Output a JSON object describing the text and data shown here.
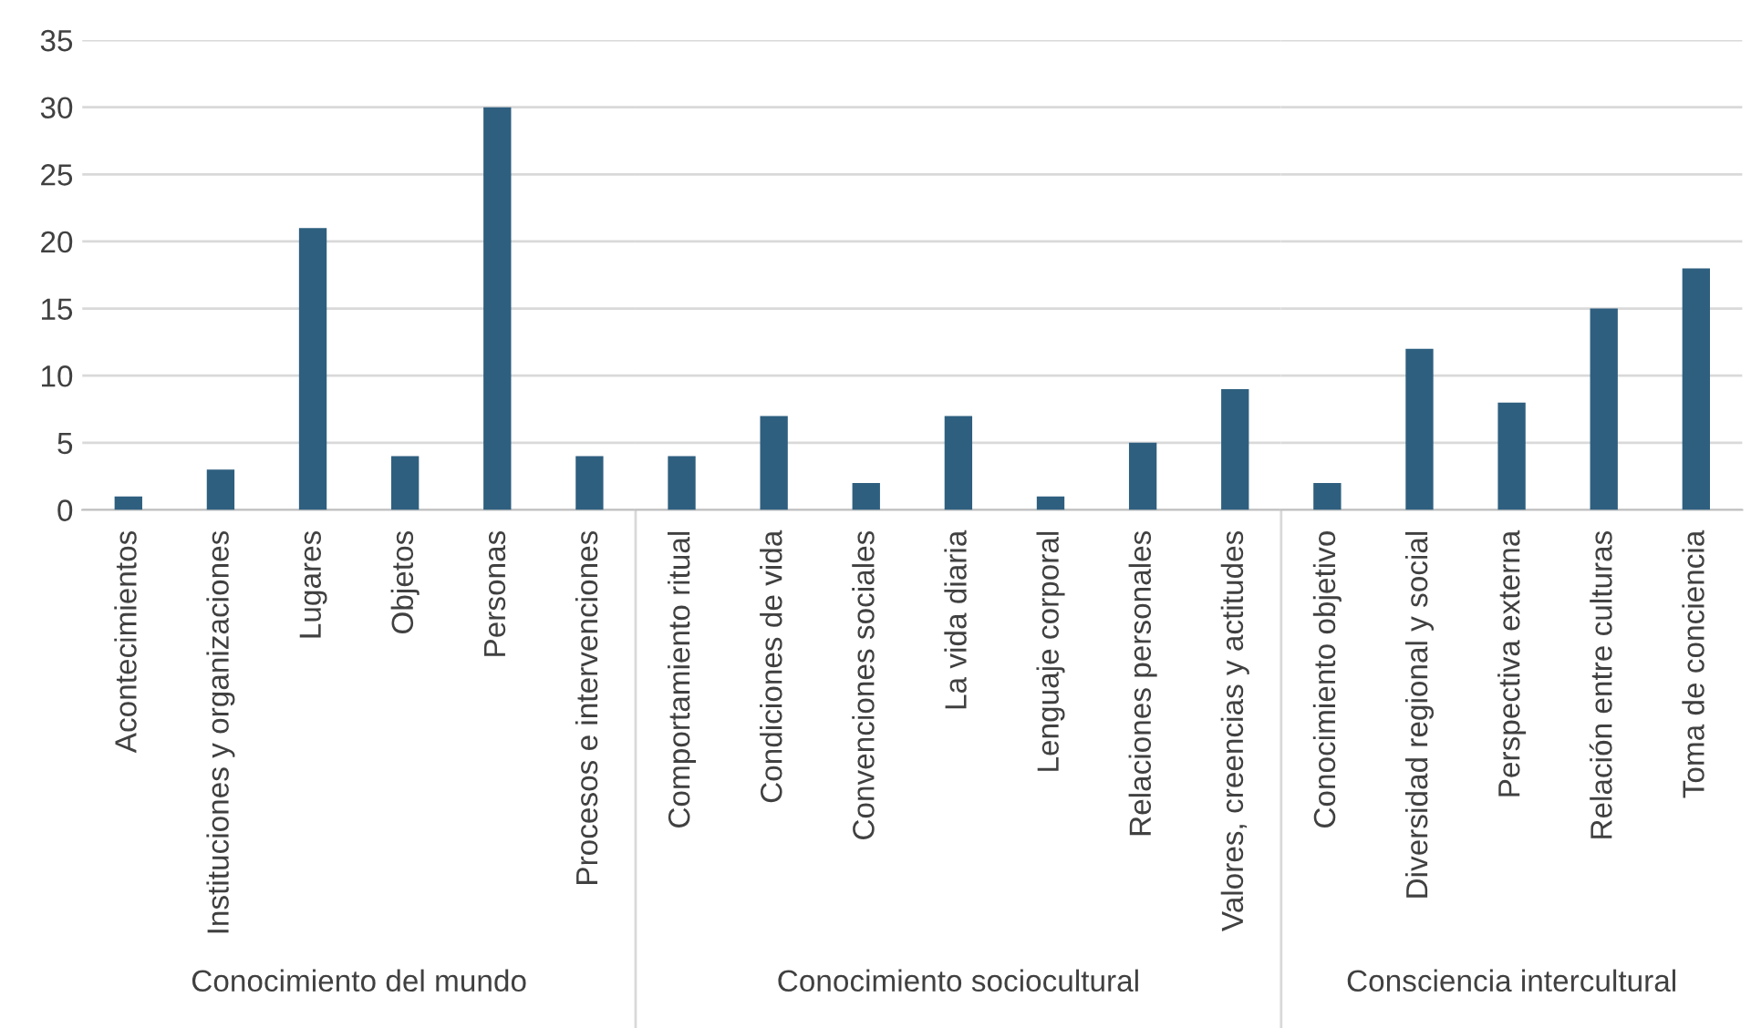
{
  "chart_data": [
    {
      "type": "bar",
      "xlabel": "Conocimiento del mundo",
      "categories": [
        "Acontecimientos",
        "Instituciones y organizaciones",
        "Lugares",
        "Objetos",
        "Personas",
        "Procesos e intervenciones"
      ],
      "values": [
        1,
        3,
        21,
        4,
        30,
        4
      ],
      "color": "#2e5f7f",
      "ylim": [
        0,
        35
      ],
      "yticks": [
        0,
        5,
        10,
        15,
        20,
        25,
        30,
        35
      ],
      "grid": "y"
    },
    {
      "type": "bar",
      "xlabel": "Conocimiento sociocultural",
      "categories": [
        "Comportamiento ritual",
        "Condiciones de vida",
        "Convenciones sociales",
        "La vida diaria",
        "Lenguaje corporal",
        "Relaciones personales",
        "Valores, creencias y actitudes"
      ],
      "values": [
        4,
        7,
        2,
        7,
        1,
        5,
        9
      ],
      "color": "#2e5f7f",
      "ylim": [
        0,
        35
      ],
      "grid": "y",
      "tick_labels": "x"
    },
    {
      "type": "bar",
      "xlabel": "Consciencia intercultural",
      "categories": [
        "Conocimiento objetivo",
        "Diversidad regional y social",
        "Perspectiva externa",
        "Relación entre culturas",
        "Toma de conciencia"
      ],
      "values": [
        2,
        12,
        8,
        15,
        18
      ],
      "color": "#2e5f7f",
      "ylim": [
        0,
        35
      ],
      "grid": "y",
      "tick_labels": "x"
    }
  ]
}
